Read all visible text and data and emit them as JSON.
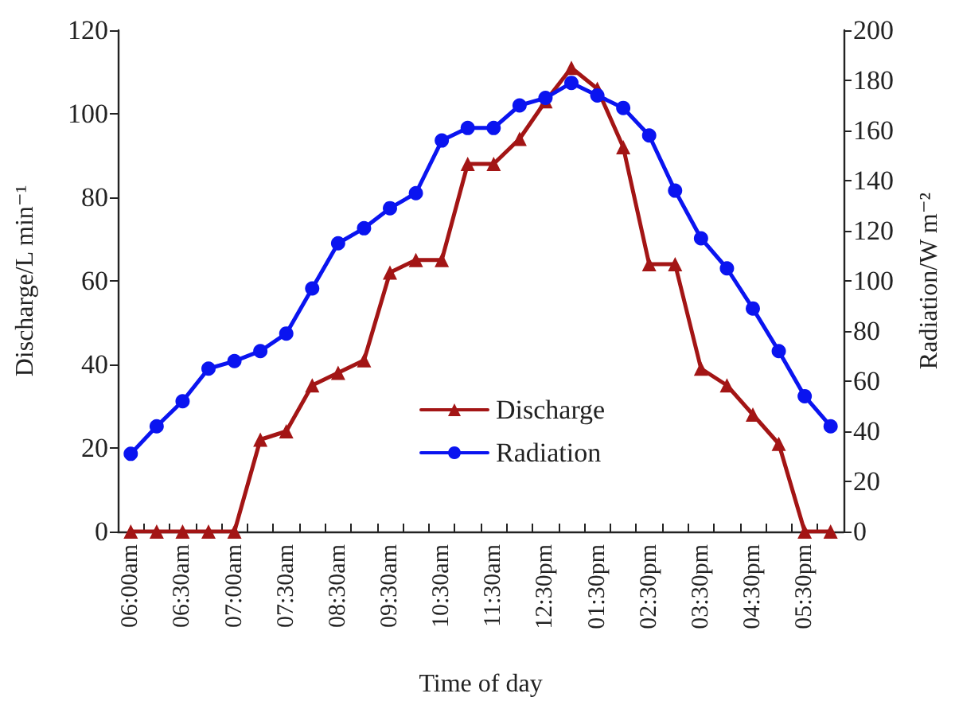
{
  "chart_data": {
    "type": "line",
    "xlabel": "Time of day",
    "ylabel": "Discharge/L min⁻¹",
    "y2label": "Radiation/W m⁻²",
    "categories": [
      "06:00am",
      null,
      "06:30am",
      null,
      "07:00am",
      null,
      "07:30am",
      null,
      "08:30am",
      null,
      "09:30am",
      null,
      "10:30am",
      null,
      "11:30am",
      null,
      "12:30pm",
      null,
      "01:30pm",
      null,
      "02:30pm",
      null,
      "03:30pm",
      null,
      "04:30pm",
      null,
      "05:30pm",
      null
    ],
    "series": [
      {
        "name": "Discharge",
        "color": "#a31515",
        "marker": "triangle",
        "values": [
          0,
          0,
          0,
          0,
          0,
          22,
          24,
          35,
          38,
          41,
          62,
          65,
          65,
          88,
          88,
          94,
          103,
          111,
          106,
          92,
          64,
          64,
          39,
          35,
          28,
          21,
          0,
          0
        ]
      },
      {
        "name": "Radiation",
        "color": "#0a14f0",
        "marker": "circle",
        "axis": "y2",
        "values": [
          31,
          42,
          52,
          65,
          68,
          72,
          79,
          97,
          115,
          121,
          129,
          135,
          156,
          161,
          161,
          170,
          173,
          179,
          174,
          169,
          158,
          136,
          117,
          105,
          89,
          72,
          54,
          42
        ]
      }
    ],
    "ylim": [
      0,
      120
    ],
    "yticks": [
      0,
      20,
      40,
      60,
      80,
      100,
      120
    ],
    "y2lim": [
      0,
      200
    ],
    "y2ticks": [
      0,
      20,
      40,
      60,
      80,
      100,
      120,
      140,
      160,
      180,
      200
    ],
    "legend": "bottom",
    "grid": false
  }
}
